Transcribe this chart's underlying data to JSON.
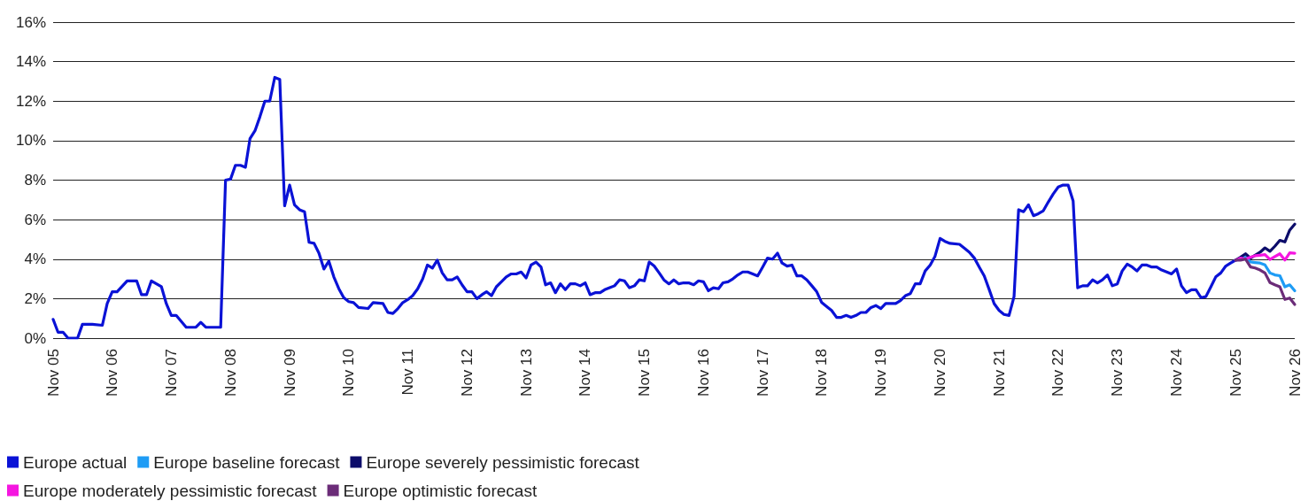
{
  "chart_data": {
    "type": "line",
    "xlim": [
      "2005-11",
      "2026-11"
    ],
    "xticks": [
      {
        "value": "2005-11",
        "label": "Nov 05"
      },
      {
        "value": "2006-11",
        "label": "Nov 06"
      },
      {
        "value": "2007-11",
        "label": "Nov 07"
      },
      {
        "value": "2008-11",
        "label": "Nov 08"
      },
      {
        "value": "2009-11",
        "label": "Nov 09"
      },
      {
        "value": "2010-11",
        "label": "Nov 10"
      },
      {
        "value": "2011-11",
        "label": "Nov 11"
      },
      {
        "value": "2012-11",
        "label": "Nov 12"
      },
      {
        "value": "2013-11",
        "label": "Nov 13"
      },
      {
        "value": "2014-11",
        "label": "Nov 14"
      },
      {
        "value": "2015-11",
        "label": "Nov 15"
      },
      {
        "value": "2016-11",
        "label": "Nov 16"
      },
      {
        "value": "2017-11",
        "label": "Nov 17"
      },
      {
        "value": "2018-11",
        "label": "Nov 18"
      },
      {
        "value": "2019-11",
        "label": "Nov 19"
      },
      {
        "value": "2020-11",
        "label": "Nov 20"
      },
      {
        "value": "2021-11",
        "label": "Nov 21"
      },
      {
        "value": "2022-11",
        "label": "Nov 22"
      },
      {
        "value": "2023-11",
        "label": "Nov 23"
      },
      {
        "value": "2024-11",
        "label": "Nov 24"
      },
      {
        "value": "2025-11",
        "label": "Nov 25"
      },
      {
        "value": "2026-11",
        "label": "Nov 26"
      }
    ],
    "ylim": [
      0,
      16
    ],
    "yticks": [
      {
        "value": 0,
        "label": "0%"
      },
      {
        "value": 2,
        "label": "2%"
      },
      {
        "value": 4,
        "label": "4%"
      },
      {
        "value": 6,
        "label": "6%"
      },
      {
        "value": 8,
        "label": "8%"
      },
      {
        "value": 10,
        "label": "10%"
      },
      {
        "value": 12,
        "label": "12%"
      },
      {
        "value": 14,
        "label": "14%"
      },
      {
        "value": 16,
        "label": "16%"
      }
    ],
    "grid": "y",
    "legend": "bottom left",
    "marker": "none",
    "line_style": "solid",
    "series": [
      {
        "name": "Europe actual",
        "color": "#0a12d6",
        "x": [
          "2005-11",
          "2005-12",
          "2006-01",
          "2006-02",
          "2006-04",
          "2006-05",
          "2006-07",
          "2006-09",
          "2006-10",
          "2006-11",
          "2006-12",
          "2007-02",
          "2007-04",
          "2007-05",
          "2007-06",
          "2007-07",
          "2007-09",
          "2007-10",
          "2007-11",
          "2007-12",
          "2008-02",
          "2008-04",
          "2008-05",
          "2008-06",
          "2008-09",
          "2008-10",
          "2008-11",
          "2008-12",
          "2009-01",
          "2009-02",
          "2009-03",
          "2009-04",
          "2009-05",
          "2009-06",
          "2009-07",
          "2009-08",
          "2009-09",
          "2009-10",
          "2009-11",
          "2009-12",
          "2010-01",
          "2010-02",
          "2010-03",
          "2010-04",
          "2010-05",
          "2010-06",
          "2010-07",
          "2010-08",
          "2010-09",
          "2010-10",
          "2010-11",
          "2010-12",
          "2011-01",
          "2011-03",
          "2011-04",
          "2011-06",
          "2011-07",
          "2011-08",
          "2011-09",
          "2011-10",
          "2011-11",
          "2011-12",
          "2012-01",
          "2012-02",
          "2012-03",
          "2012-04",
          "2012-05",
          "2012-06",
          "2012-07",
          "2012-08",
          "2012-09",
          "2012-10",
          "2012-11",
          "2012-12",
          "2013-01",
          "2013-02",
          "2013-03",
          "2013-04",
          "2013-05",
          "2013-06",
          "2013-07",
          "2013-08",
          "2013-09",
          "2013-10",
          "2013-11",
          "2013-12",
          "2014-01",
          "2014-02",
          "2014-03",
          "2014-04",
          "2014-05",
          "2014-06",
          "2014-07",
          "2014-08",
          "2014-09",
          "2014-10",
          "2014-11",
          "2014-12",
          "2015-01",
          "2015-02",
          "2015-03",
          "2015-04",
          "2015-05",
          "2015-06",
          "2015-07",
          "2015-08",
          "2015-09",
          "2015-10",
          "2015-11",
          "2015-12",
          "2016-01",
          "2016-02",
          "2016-03",
          "2016-04",
          "2016-05",
          "2016-06",
          "2016-07",
          "2016-08",
          "2016-09",
          "2016-10",
          "2016-11",
          "2016-12",
          "2017-01",
          "2017-02",
          "2017-03",
          "2017-04",
          "2017-05",
          "2017-06",
          "2017-07",
          "2017-08",
          "2017-09",
          "2017-10",
          "2017-11",
          "2017-12",
          "2018-01",
          "2018-02",
          "2018-03",
          "2018-04",
          "2018-05",
          "2018-06",
          "2018-07",
          "2018-08",
          "2018-09",
          "2018-10",
          "2018-11",
          "2018-12",
          "2019-01",
          "2019-02",
          "2019-03",
          "2019-04",
          "2019-05",
          "2019-06",
          "2019-07",
          "2019-08",
          "2019-09",
          "2019-10",
          "2019-11",
          "2019-12",
          "2020-02",
          "2020-03",
          "2020-04",
          "2020-05",
          "2020-06",
          "2020-07",
          "2020-08",
          "2020-09",
          "2020-10",
          "2020-11",
          "2020-12",
          "2021-01",
          "2021-03",
          "2021-04",
          "2021-05",
          "2021-06",
          "2021-07",
          "2021-08",
          "2021-09",
          "2021-10",
          "2021-11",
          "2021-12",
          "2022-01",
          "2022-02",
          "2022-03",
          "2022-04",
          "2022-05",
          "2022-06",
          "2022-07",
          "2022-08",
          "2022-09",
          "2022-10",
          "2022-11",
          "2022-12",
          "2023-01",
          "2023-02",
          "2023-03",
          "2023-04",
          "2023-05",
          "2023-06",
          "2023-07",
          "2023-08",
          "2023-09",
          "2023-10",
          "2023-11",
          "2023-12",
          "2024-01",
          "2024-02",
          "2024-03",
          "2024-04",
          "2024-05",
          "2024-06",
          "2024-07",
          "2024-08",
          "2024-09",
          "2024-10",
          "2024-11",
          "2024-12",
          "2025-01",
          "2025-02",
          "2025-03",
          "2025-04",
          "2025-05",
          "2025-06",
          "2025-07",
          "2025-08",
          "2025-09",
          "2025-10",
          "2025-11"
        ],
        "values": [
          0.95,
          0.3,
          0.3,
          0.0,
          0.0,
          0.7,
          0.7,
          0.65,
          1.75,
          2.35,
          2.35,
          2.9,
          2.9,
          2.2,
          2.2,
          2.9,
          2.6,
          1.75,
          1.15,
          1.15,
          0.55,
          0.55,
          0.8,
          0.55,
          0.55,
          8.0,
          8.05,
          8.75,
          8.75,
          8.65,
          10.1,
          10.5,
          11.2,
          12.0,
          12.0,
          13.2,
          13.1,
          6.7,
          7.75,
          6.75,
          6.5,
          6.4,
          4.85,
          4.8,
          4.3,
          3.5,
          3.9,
          3.1,
          2.5,
          2.05,
          1.85,
          1.8,
          1.55,
          1.5,
          1.8,
          1.75,
          1.3,
          1.25,
          1.5,
          1.8,
          1.95,
          2.15,
          2.5,
          3.0,
          3.7,
          3.55,
          3.95,
          3.3,
          2.95,
          2.95,
          3.1,
          2.7,
          2.35,
          2.35,
          2.0,
          2.2,
          2.35,
          2.15,
          2.6,
          2.85,
          3.1,
          3.25,
          3.25,
          3.35,
          3.05,
          3.7,
          3.85,
          3.6,
          2.7,
          2.8,
          2.3,
          2.75,
          2.45,
          2.75,
          2.75,
          2.65,
          2.8,
          2.2,
          2.3,
          2.3,
          2.45,
          2.55,
          2.65,
          2.95,
          2.9,
          2.55,
          2.65,
          2.95,
          2.9,
          3.85,
          3.65,
          3.3,
          2.95,
          2.75,
          2.95,
          2.75,
          2.8,
          2.8,
          2.7,
          2.9,
          2.85,
          2.4,
          2.55,
          2.5,
          2.8,
          2.85,
          3.0,
          3.2,
          3.35,
          3.35,
          3.25,
          3.15,
          3.6,
          4.05,
          4.0,
          4.3,
          3.8,
          3.65,
          3.7,
          3.15,
          3.15,
          2.95,
          2.65,
          2.35,
          1.8,
          1.6,
          1.4,
          1.05,
          1.05,
          1.15,
          1.05,
          1.15,
          1.3,
          1.3,
          1.55,
          1.65,
          1.5,
          1.75,
          1.75,
          1.9,
          2.15,
          2.25,
          2.75,
          2.75,
          3.4,
          3.7,
          4.15,
          5.05,
          4.9,
          4.8,
          4.75,
          4.55,
          4.35,
          4.05,
          3.6,
          3.15,
          2.45,
          1.75,
          1.4,
          1.2,
          1.15,
          2.1,
          6.5,
          6.4,
          6.75,
          6.2,
          6.3,
          6.45,
          6.9,
          7.3,
          7.65,
          7.75,
          7.75,
          6.95,
          2.55,
          2.65,
          2.65,
          2.95,
          2.8,
          2.95,
          3.2,
          2.65,
          2.75,
          3.4,
          3.75,
          3.6,
          3.4,
          3.7,
          3.7,
          3.6,
          3.6,
          3.45,
          3.35,
          3.25,
          3.5,
          2.65,
          2.3,
          2.45,
          2.45,
          2.05,
          2.1,
          2.6,
          3.1,
          3.3,
          3.65,
          3.8,
          3.95
        ]
      },
      {
        "name": "Europe baseline forecast",
        "color": "#1e9cf5",
        "x": [
          "2025-11",
          "2025-12",
          "2026-01",
          "2026-02",
          "2026-03",
          "2026-04",
          "2026-05",
          "2026-06",
          "2026-07",
          "2026-08",
          "2026-09",
          "2026-10",
          "2026-11"
        ],
        "values": [
          3.95,
          4.0,
          4.1,
          3.86,
          3.83,
          3.8,
          3.71,
          3.3,
          3.2,
          3.16,
          2.6,
          2.7,
          2.4
        ]
      },
      {
        "name": "Europe severely pessimistic forecast",
        "color": "#0c0c6a",
        "x": [
          "2025-11",
          "2025-12",
          "2026-01",
          "2026-02",
          "2026-03",
          "2026-04",
          "2026-05",
          "2026-06",
          "2026-07",
          "2026-08",
          "2026-09",
          "2026-10",
          "2026-11"
        ],
        "values": [
          3.95,
          4.1,
          4.27,
          4.05,
          4.2,
          4.35,
          4.57,
          4.4,
          4.65,
          4.95,
          4.87,
          5.47,
          5.77
        ]
      },
      {
        "name": "Europe moderately pessimistic forecast",
        "color": "#f516e0",
        "x": [
          "2025-11",
          "2025-12",
          "2026-01",
          "2026-02",
          "2026-03",
          "2026-04",
          "2026-05",
          "2026-06",
          "2026-07",
          "2026-08",
          "2026-09",
          "2026-10",
          "2026-11"
        ],
        "values": [
          3.95,
          4.05,
          4.0,
          4.1,
          4.17,
          4.2,
          4.23,
          3.98,
          4.13,
          4.27,
          3.95,
          4.32,
          4.3
        ]
      },
      {
        "name": "Europe optimistic forecast",
        "color": "#6b2c78",
        "x": [
          "2025-11",
          "2025-12",
          "2026-01",
          "2026-02",
          "2026-03",
          "2026-04",
          "2026-05",
          "2026-06",
          "2026-07",
          "2026-08",
          "2026-09",
          "2026-10",
          "2026-11"
        ],
        "values": [
          3.95,
          3.95,
          4.0,
          3.6,
          3.55,
          3.45,
          3.3,
          2.81,
          2.7,
          2.6,
          1.96,
          2.03,
          1.7
        ]
      }
    ]
  }
}
